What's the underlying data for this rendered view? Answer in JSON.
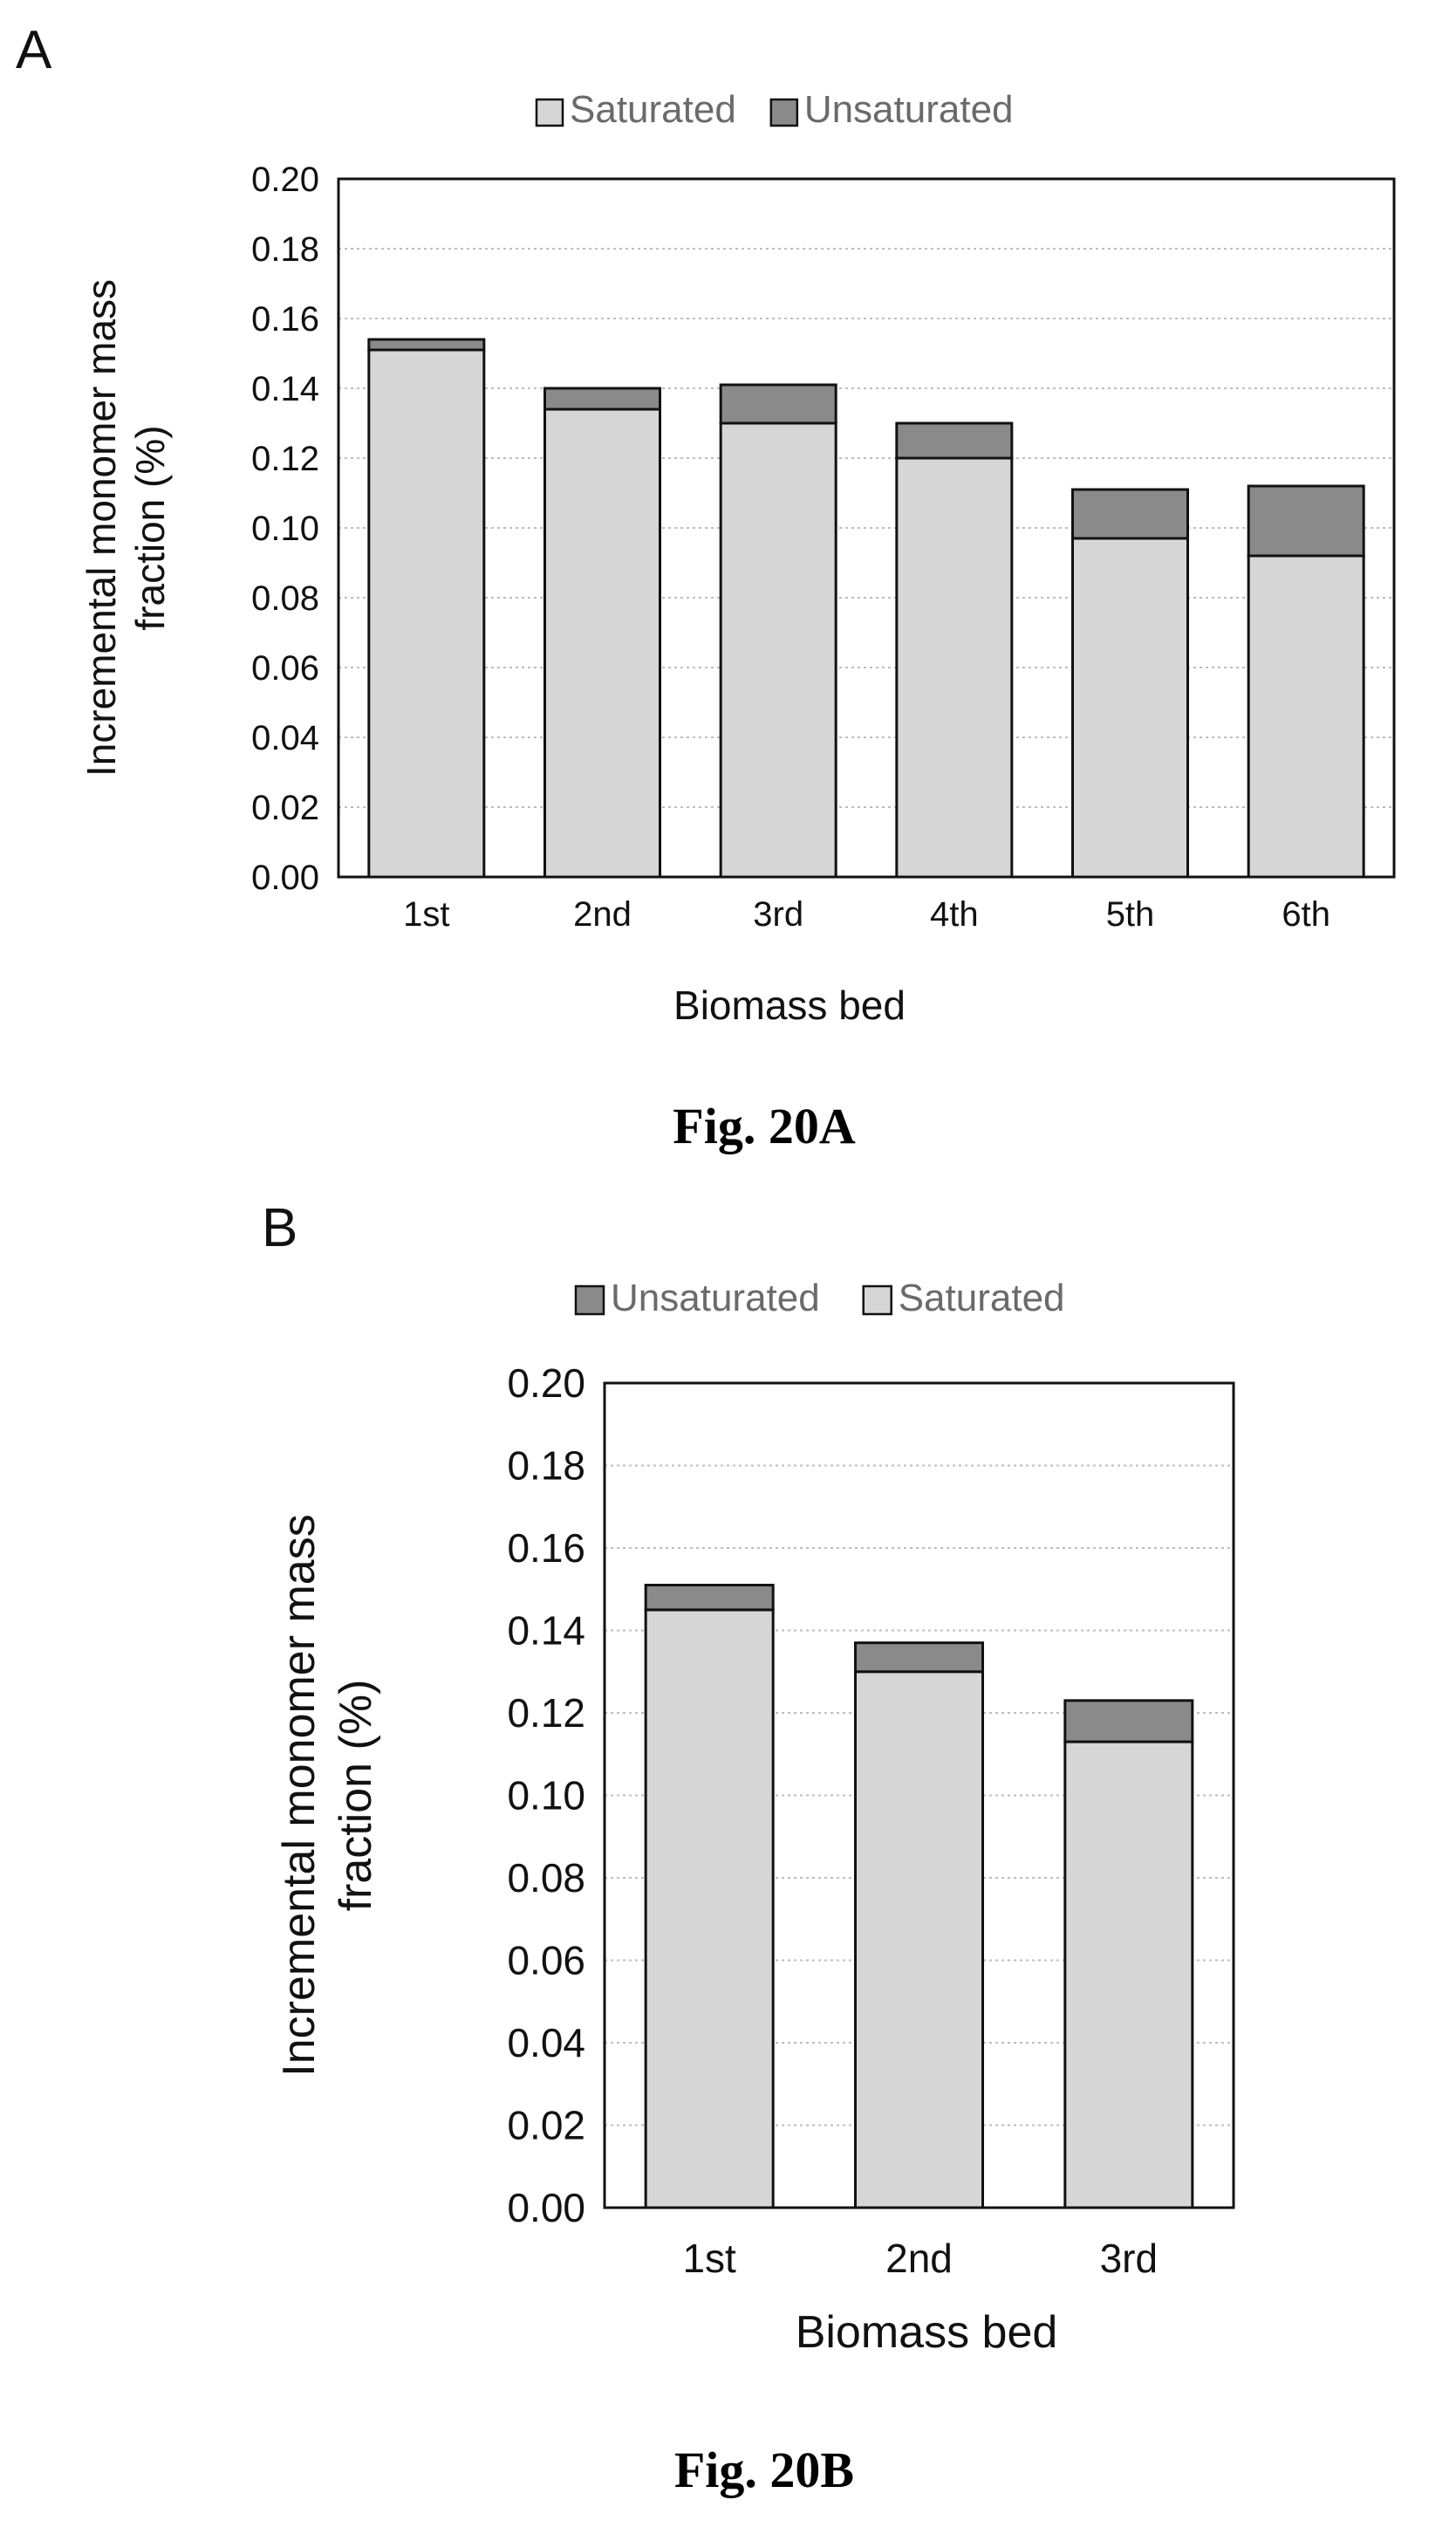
{
  "chart_data": [
    {
      "type": "bar",
      "stacked": true,
      "panel_label": "A",
      "caption": "Fig. 20A",
      "categories": [
        "1st",
        "2nd",
        "3rd",
        "4th",
        "5th",
        "6th"
      ],
      "series": [
        {
          "name": "Saturated",
          "color": "#d6d6d6",
          "values": [
            0.151,
            0.134,
            0.13,
            0.12,
            0.097,
            0.092
          ]
        },
        {
          "name": "Unsaturated",
          "color": "#8a8a8a",
          "values": [
            0.003,
            0.006,
            0.011,
            0.01,
            0.014,
            0.02
          ]
        }
      ],
      "legend": [
        {
          "name": "Saturated",
          "color": "#d6d6d6"
        },
        {
          "name": "Unsaturated",
          "color": "#8a8a8a"
        }
      ],
      "legend_position": "top",
      "xlabel": "Biomass bed",
      "ylabel": [
        "Incremental monomer mass",
        "fraction (%)"
      ],
      "ylim": [
        0,
        0.2
      ],
      "yticks": [
        "0.00",
        "0.02",
        "0.04",
        "0.06",
        "0.08",
        "0.10",
        "0.12",
        "0.14",
        "0.16",
        "0.18",
        "0.20"
      ],
      "grid": true
    },
    {
      "type": "bar",
      "stacked": true,
      "panel_label": "B",
      "caption": "Fig. 20B",
      "categories": [
        "1st",
        "2nd",
        "3rd"
      ],
      "series": [
        {
          "name": "Saturated",
          "color": "#d6d6d6",
          "values": [
            0.145,
            0.13,
            0.113
          ]
        },
        {
          "name": "Unsaturated",
          "color": "#8a8a8a",
          "values": [
            0.006,
            0.007,
            0.01
          ]
        }
      ],
      "legend": [
        {
          "name": "Unsaturated",
          "color": "#8a8a8a"
        },
        {
          "name": "Saturated",
          "color": "#d6d6d6"
        }
      ],
      "legend_position": "top",
      "xlabel": "Biomass bed",
      "ylabel": [
        "Incremental monomer mass",
        "fraction (%)"
      ],
      "ylim": [
        0,
        0.2
      ],
      "yticks": [
        "0.00",
        "0.02",
        "0.04",
        "0.06",
        "0.08",
        "0.10",
        "0.12",
        "0.14",
        "0.16",
        "0.18",
        "0.20"
      ],
      "grid": true
    }
  ]
}
